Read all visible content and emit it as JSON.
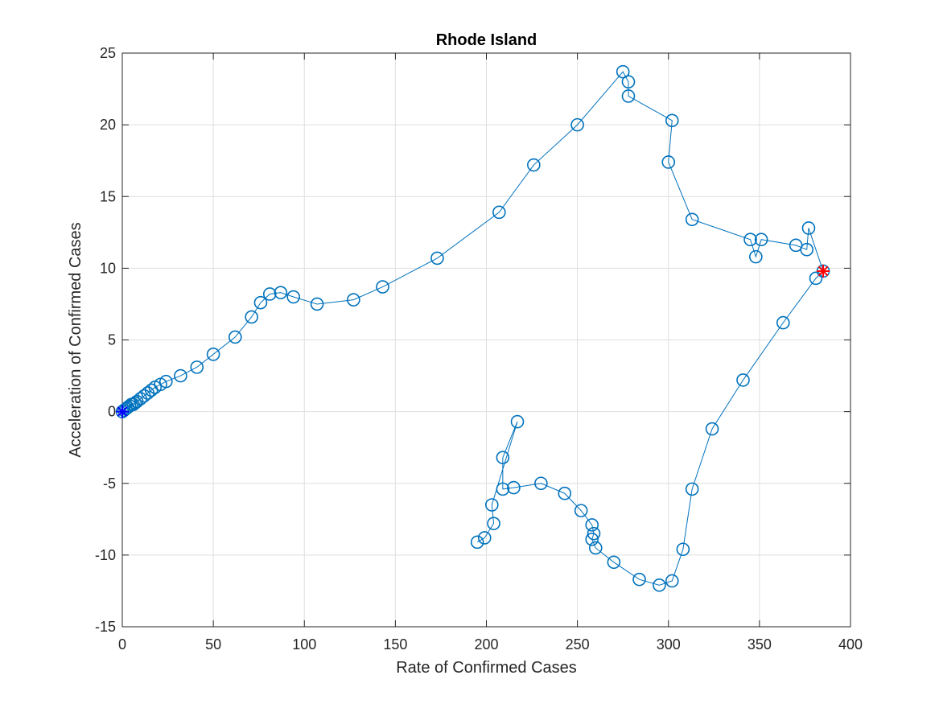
{
  "chart_data": {
    "type": "line",
    "title": "Rhode Island",
    "xlabel": "Rate of Confirmed Cases",
    "ylabel": "Acceleration of Confirmed Cases",
    "xlim": [
      0,
      400
    ],
    "ylim": [
      -15,
      25
    ],
    "xticks": [
      0,
      50,
      100,
      150,
      200,
      250,
      300,
      350,
      400
    ],
    "yticks": [
      -15,
      -10,
      -5,
      0,
      5,
      10,
      15,
      20,
      25
    ],
    "grid": true,
    "series": [
      {
        "color": "#0072bd",
        "marker": "circle",
        "x": [
          0,
          1,
          2,
          3,
          4,
          5,
          6,
          7,
          8,
          10,
          12,
          14,
          16,
          18,
          21,
          24,
          32,
          41,
          50,
          62,
          71,
          76,
          81,
          87,
          94,
          107,
          127,
          143,
          173,
          207,
          226,
          250,
          275,
          278,
          278,
          302,
          300,
          313,
          345,
          348,
          351,
          370,
          376,
          377,
          385,
          381,
          363,
          341,
          324,
          313,
          308,
          302,
          295,
          284,
          270,
          260,
          258,
          259,
          258,
          252,
          243,
          230,
          215,
          209,
          209,
          217,
          203,
          204,
          199,
          195
        ],
        "y": [
          0,
          0.1,
          0.2,
          0.3,
          0.4,
          0.5,
          0.5,
          0.6,
          0.7,
          0.9,
          1.1,
          1.3,
          1.5,
          1.7,
          1.9,
          2.1,
          2.5,
          3.1,
          4.0,
          5.2,
          6.6,
          7.6,
          8.2,
          8.3,
          8.0,
          7.5,
          7.8,
          8.7,
          10.7,
          13.9,
          17.2,
          20.0,
          23.7,
          23.0,
          22.0,
          20.3,
          17.4,
          13.4,
          12.0,
          10.8,
          12.0,
          11.6,
          11.3,
          12.8,
          9.8,
          9.3,
          6.2,
          2.2,
          -1.2,
          -5.4,
          -9.6,
          -11.8,
          -12.1,
          -11.7,
          -10.5,
          -9.5,
          -8.9,
          -8.5,
          -7.9,
          -6.9,
          -5.7,
          -5.0,
          -5.3,
          -5.4,
          -3.2,
          -0.7,
          -6.5,
          -7.8,
          -8.8,
          -9.1
        ]
      }
    ],
    "start_marker": {
      "x": 0,
      "y": 0,
      "color": "#0000ff",
      "marker": "asterisk"
    },
    "end_marker": {
      "x": 385,
      "y": 9.8,
      "color": "#ff0000",
      "marker": "asterisk"
    }
  }
}
